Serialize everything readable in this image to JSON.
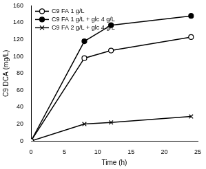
{
  "chart_data": {
    "type": "line",
    "x_label": "Time (h)",
    "y_label": "C9 DCA (mg/L)",
    "xlim": [
      0,
      25
    ],
    "xticks": [
      0,
      5,
      10,
      15,
      20,
      25
    ],
    "ylim": [
      0,
      160
    ],
    "yticks": [
      0,
      20,
      40,
      60,
      80,
      100,
      120,
      140,
      160
    ],
    "grid": false,
    "legend": "upper left",
    "series": [
      {
        "name": "C9 FA 1 g/L",
        "color": "#000000",
        "marker": "open_circle",
        "x": [
          0,
          8,
          12,
          24
        ],
        "values": [
          0,
          98,
          107,
          123
        ]
      },
      {
        "name": "C9 FA 1 g/L + glc 4 g/L",
        "color": "#000000",
        "marker": "circle",
        "x": [
          0,
          8,
          12,
          24
        ],
        "values": [
          0,
          118,
          137,
          148
        ]
      },
      {
        "name": "C9 FA 2 g/L + glc 4 g/L",
        "color": "#000000",
        "marker": "x",
        "x": [
          0,
          8,
          12,
          24
        ],
        "values": [
          0,
          20,
          22,
          29
        ]
      }
    ]
  }
}
